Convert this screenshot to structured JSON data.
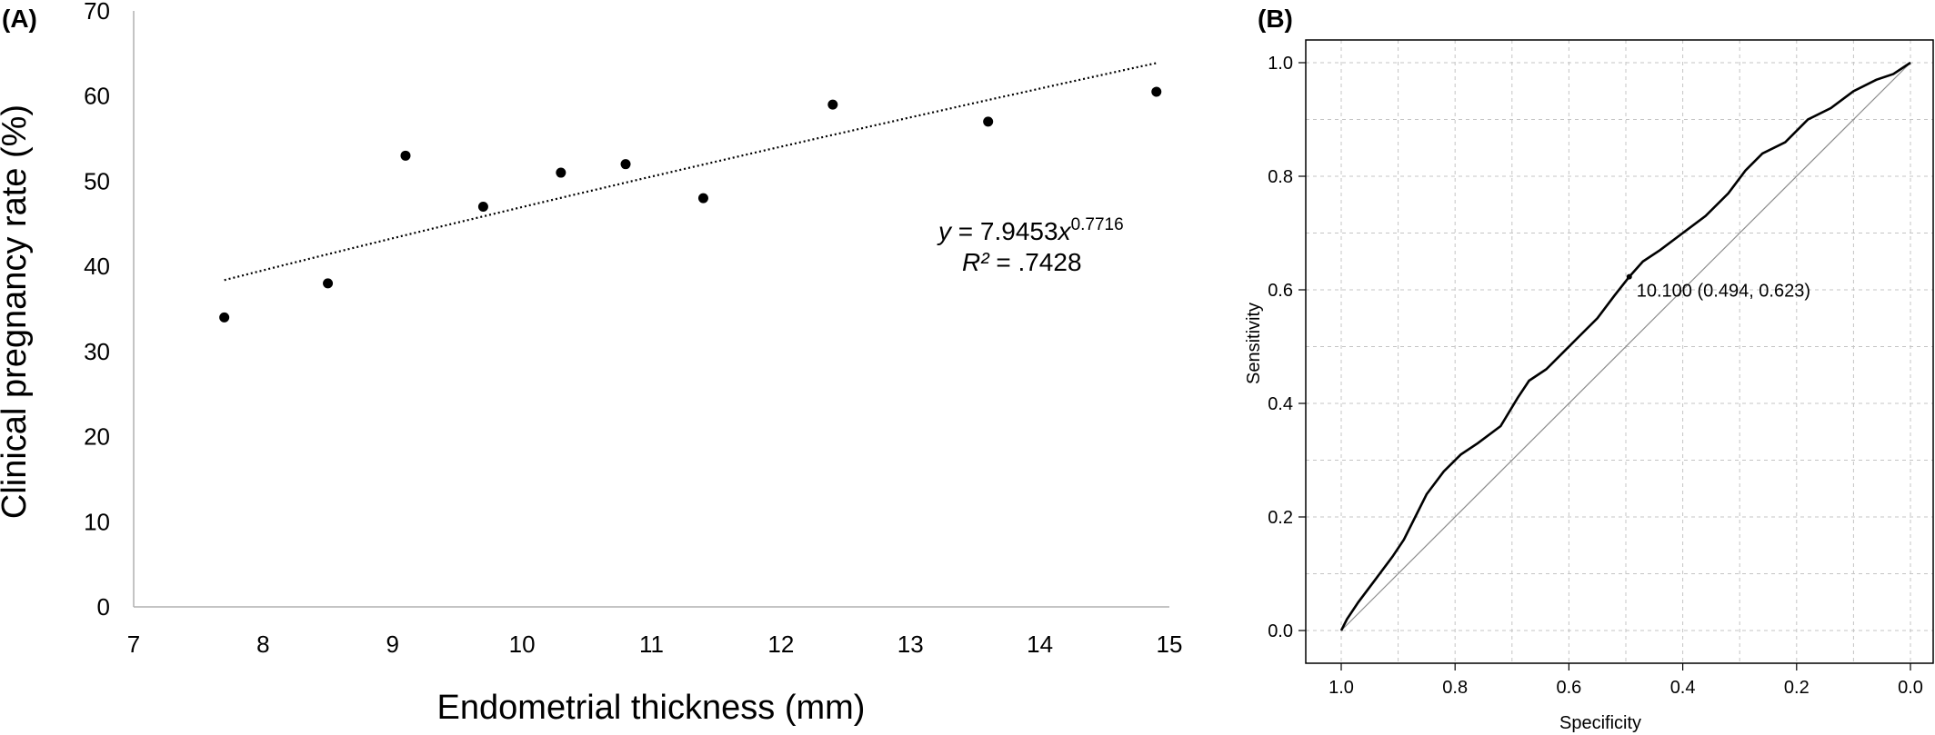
{
  "figure": {
    "panel_a_label": "(A)",
    "panel_b_label": "(B)"
  },
  "chart_data": [
    {
      "type": "scatter",
      "panel": "(A)",
      "xlabel": "Endometrial thickness (mm)",
      "ylabel": "Clinical pregnancy rate (%)",
      "xlim": [
        7,
        15
      ],
      "ylim": [
        0,
        70
      ],
      "x_ticks": [
        7,
        8,
        9,
        10,
        11,
        12,
        13,
        14,
        15
      ],
      "y_ticks": [
        0,
        10,
        20,
        30,
        40,
        50,
        60,
        70
      ],
      "grid": false,
      "series": [
        {
          "points": [
            {
              "x": 7.7,
              "y": 34
            },
            {
              "x": 8.5,
              "y": 38
            },
            {
              "x": 9.1,
              "y": 53
            },
            {
              "x": 9.7,
              "y": 47
            },
            {
              "x": 10.3,
              "y": 51
            },
            {
              "x": 10.8,
              "y": 52
            },
            {
              "x": 11.4,
              "y": 48
            },
            {
              "x": 12.4,
              "y": 59
            },
            {
              "x": 13.6,
              "y": 57
            },
            {
              "x": 14.9,
              "y": 60.5
            }
          ]
        }
      ],
      "trendline": {
        "style": "dotted",
        "model": "power",
        "coefficient": 7.9453,
        "exponent": 0.7716,
        "x_range": [
          7.7,
          14.9
        ],
        "equation_lhs": "y",
        "equation_mid": " = 7.9453",
        "equation_var": "x",
        "equation_exp": "0.7716",
        "r2_label": "R²",
        "r2_value": " = .7428"
      }
    },
    {
      "type": "line",
      "panel": "(B)",
      "xlabel": "Specificity",
      "ylabel": "Sensitivity",
      "xlim": [
        1.0,
        0.0
      ],
      "ylim": [
        0.0,
        1.0
      ],
      "x_reversed": true,
      "x_ticks": [
        "1.0",
        "0.8",
        "0.6",
        "0.4",
        "0.2",
        "0.0"
      ],
      "y_ticks": [
        "0.0",
        "0.2",
        "0.4",
        "0.6",
        "0.8",
        "1.0"
      ],
      "grid": true,
      "series": [
        {
          "points": [
            [
              1.0,
              0.0
            ],
            [
              0.99,
              0.02
            ],
            [
              0.97,
              0.05
            ],
            [
              0.94,
              0.09
            ],
            [
              0.91,
              0.13
            ],
            [
              0.89,
              0.16
            ],
            [
              0.87,
              0.2
            ],
            [
              0.85,
              0.24
            ],
            [
              0.82,
              0.28
            ],
            [
              0.79,
              0.31
            ],
            [
              0.76,
              0.33
            ],
            [
              0.72,
              0.36
            ],
            [
              0.69,
              0.41
            ],
            [
              0.67,
              0.44
            ],
            [
              0.64,
              0.46
            ],
            [
              0.61,
              0.49
            ],
            [
              0.58,
              0.52
            ],
            [
              0.55,
              0.55
            ],
            [
              0.52,
              0.59
            ],
            [
              0.494,
              0.623
            ],
            [
              0.47,
              0.65
            ],
            [
              0.44,
              0.67
            ],
            [
              0.4,
              0.7
            ],
            [
              0.36,
              0.73
            ],
            [
              0.32,
              0.77
            ],
            [
              0.29,
              0.81
            ],
            [
              0.26,
              0.84
            ],
            [
              0.22,
              0.86
            ],
            [
              0.18,
              0.9
            ],
            [
              0.14,
              0.92
            ],
            [
              0.1,
              0.95
            ],
            [
              0.06,
              0.97
            ],
            [
              0.03,
              0.98
            ],
            [
              0.0,
              1.0
            ]
          ]
        }
      ],
      "reference_line": {
        "from": [
          1.0,
          0.0
        ],
        "to": [
          0.0,
          1.0
        ]
      },
      "cutoff_point": {
        "specificity": 0.494,
        "sensitivity": 0.623,
        "label": "10.100 (0.494, 0.623)"
      }
    }
  ]
}
